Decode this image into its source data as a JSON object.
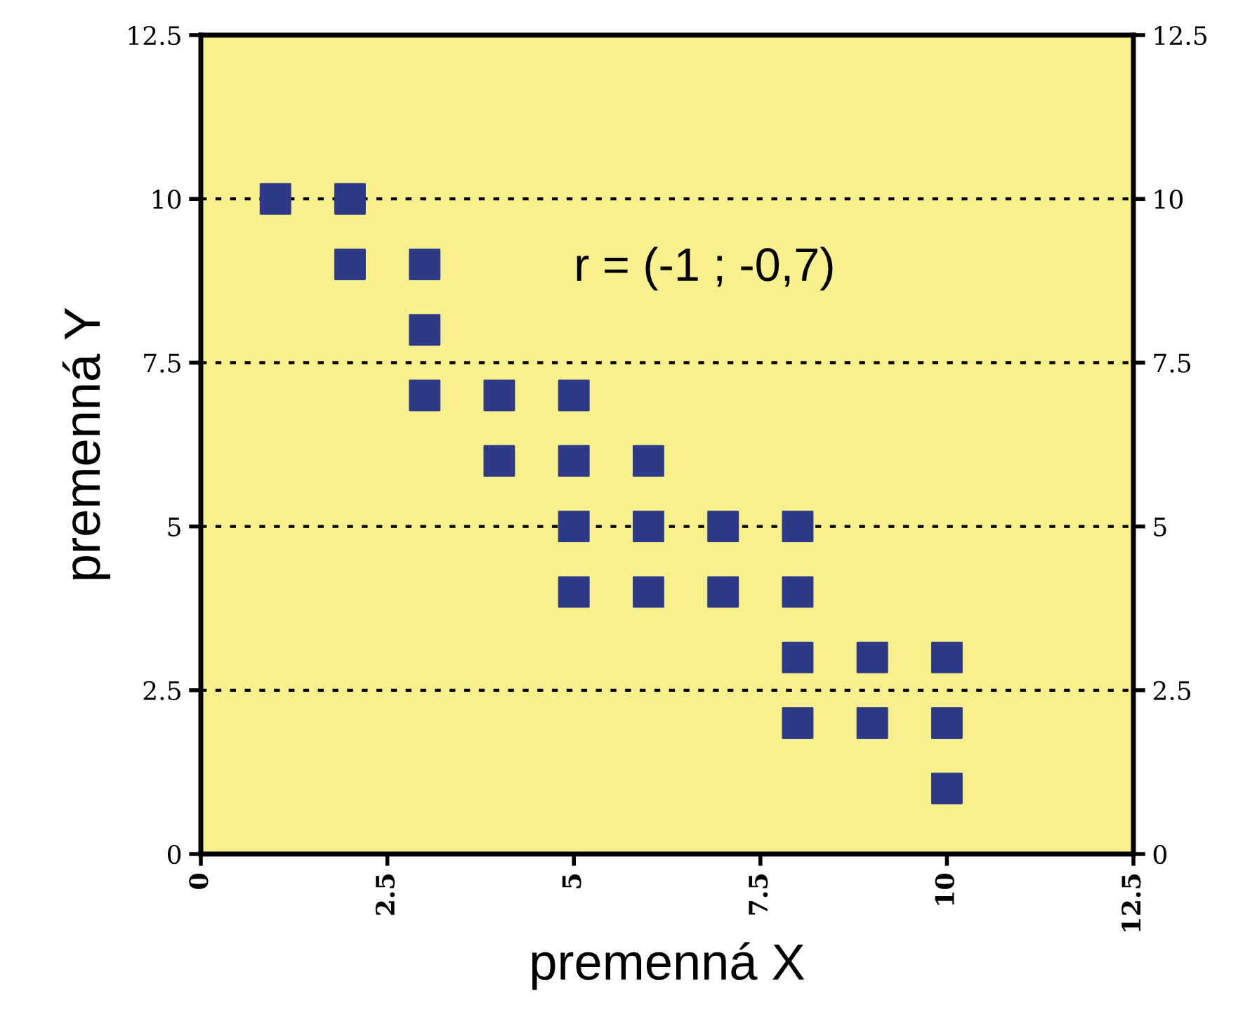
{
  "chart_data": {
    "type": "scatter",
    "xlabel": "premenná X",
    "ylabel": "premenná Y",
    "x": [
      1,
      2,
      2,
      3,
      3,
      3,
      4,
      4,
      5,
      5,
      5,
      5,
      6,
      6,
      6,
      7,
      7,
      8,
      8,
      8,
      8,
      9,
      9,
      10,
      10,
      10
    ],
    "series": [
      {
        "color": "#2e3a87",
        "values": [
          10,
          10,
          9,
          9,
          8,
          7,
          7,
          6,
          7,
          6,
          5,
          4,
          6,
          5,
          4,
          5,
          4,
          5,
          4,
          3,
          2,
          3,
          2,
          3,
          2,
          1
        ]
      }
    ],
    "marker": "square",
    "xlim": [
      0,
      12.5
    ],
    "xticks": [
      0,
      2.5,
      5,
      7.5,
      10,
      12.5
    ],
    "ylim": [
      0,
      12.5
    ],
    "yticks": [
      0,
      2.5,
      5,
      7.5,
      10,
      12.5
    ],
    "y2lim": [
      0,
      12.5
    ],
    "y2ticks": [
      0,
      2.5,
      5,
      7.5,
      10,
      12.5
    ],
    "grid": "y",
    "annotations": [
      "r = (-1 ; -0,7)"
    ]
  }
}
